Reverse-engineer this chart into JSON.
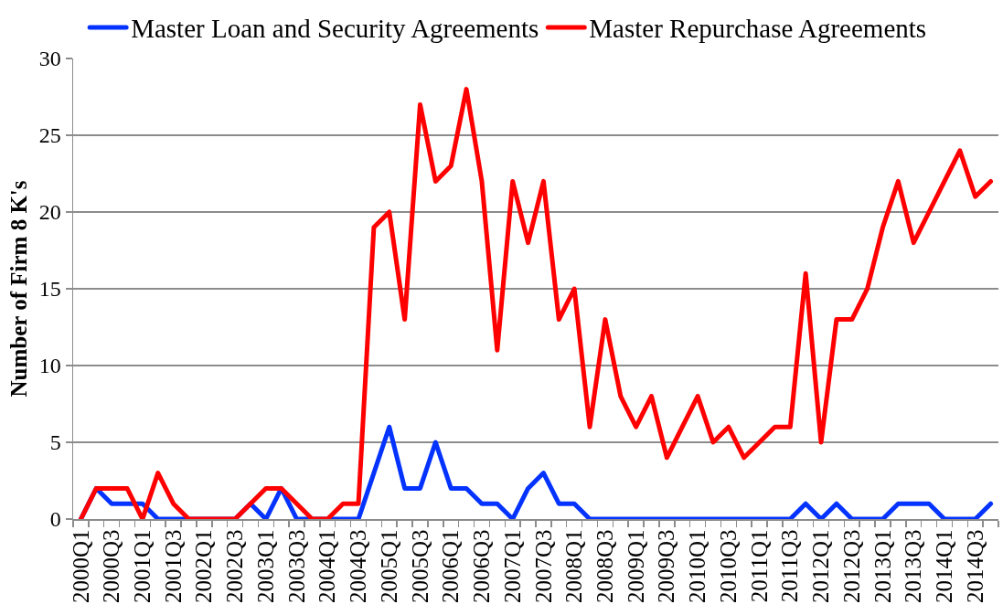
{
  "chart_data": {
    "type": "line",
    "ylabel": "Number of Firm 8 K's",
    "categories": [
      "2000Q1",
      null,
      "2000Q3",
      null,
      "2001Q1",
      null,
      "2001Q3",
      null,
      "2002Q1",
      null,
      "2002Q3",
      null,
      "2003Q1",
      null,
      "2003Q3",
      null,
      "2004Q1",
      null,
      "2004Q3",
      null,
      "2005Q1",
      null,
      "2005Q3",
      null,
      "2006Q1",
      null,
      "2006Q3",
      null,
      "2007Q1",
      null,
      "2007Q3",
      null,
      "2008Q1",
      null,
      "2008Q3",
      null,
      "2009Q1",
      null,
      "2009Q3",
      null,
      "2010Q1",
      null,
      "2010Q3",
      null,
      "2011Q1",
      null,
      "2011Q3",
      null,
      "2012Q1",
      null,
      "2012Q3",
      null,
      "2013Q1",
      null,
      "2013Q3",
      null,
      "2014Q1",
      null,
      "2014Q3",
      null
    ],
    "series": [
      {
        "name": "Master Loan and Security Agreements",
        "color": "#0433ff",
        "values": [
          0,
          2,
          1,
          1,
          1,
          0,
          0,
          0,
          0,
          0,
          0,
          1,
          0,
          2,
          0,
          0,
          0,
          0,
          0,
          3,
          6,
          2,
          2,
          5,
          2,
          2,
          1,
          1,
          0,
          2,
          3,
          1,
          1,
          0,
          0,
          0,
          0,
          0,
          0,
          0,
          0,
          0,
          0,
          0,
          0,
          0,
          0,
          1,
          0,
          1,
          0,
          0,
          0,
          1,
          1,
          1,
          0,
          0,
          0,
          1
        ]
      },
      {
        "name": "Master Repurchase Agreements",
        "color": "#ff0000",
        "values": [
          0,
          2,
          2,
          2,
          0,
          3,
          1,
          0,
          0,
          0,
          0,
          1,
          2,
          2,
          1,
          0,
          0,
          1,
          1,
          19,
          20,
          13,
          27,
          22,
          23,
          28,
          22,
          11,
          22,
          18,
          22,
          13,
          15,
          6,
          13,
          8,
          6,
          8,
          4,
          6,
          8,
          5,
          6,
          4,
          5,
          6,
          6,
          16,
          5,
          13,
          13,
          15,
          19,
          22,
          18,
          20,
          22,
          24,
          21,
          22
        ]
      }
    ],
    "ylim": [
      0,
      30
    ],
    "yticks": [
      0,
      5,
      10,
      15,
      20,
      25,
      30
    ],
    "grid": "y",
    "legend": "top",
    "line_style": "solid"
  }
}
